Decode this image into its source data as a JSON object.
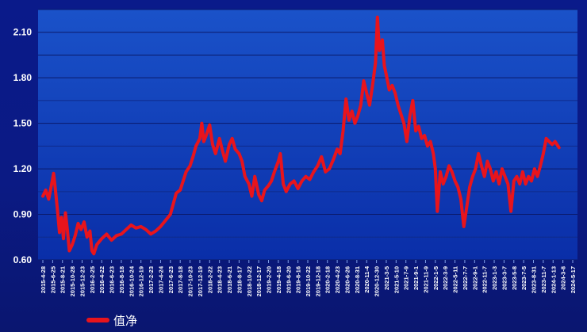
{
  "chart_data": {
    "type": "line",
    "title": "",
    "xlabel": "",
    "ylabel": "",
    "ylim": [
      0.6,
      2.25
    ],
    "y_ticks": [
      "0.60",
      "0.90",
      "1.20",
      "1.50",
      "1.80",
      "2.10"
    ],
    "x_tick_labels": [
      "2015-4-28",
      "2015-6-25",
      "2015-8-21",
      "2015-10-28",
      "2015-12-23",
      "2016-2-25",
      "2016-4-22",
      "2016-6-23",
      "2016-8-18",
      "2016-10-24",
      "2016-12-19",
      "2017-2-23",
      "2017-4-24",
      "2017-6-23",
      "2017-8-18",
      "2017-10-23",
      "2017-12-19",
      "2018-2-22",
      "2018-4-23",
      "2018-6-21",
      "2018-8-17",
      "2018-10-22",
      "2018-12-17",
      "2019-2-20",
      "2019-4-18",
      "2019-6-20",
      "2019-8-16",
      "2019-10-22",
      "2019-12-18",
      "2020-2-18",
      "2020-4-23",
      "2020-6-26",
      "2020-8-31",
      "2020-11-4",
      "2020-12-30",
      "2021-3-5",
      "2021-5-10",
      "2021-7-9",
      "2021-9-1",
      "2021-11-9",
      "2022-1-5",
      "2022-3-9",
      "2022-5-11",
      "2022-7-7",
      "2022-9-1",
      "2022-11-7",
      "2023-1-3",
      "2023-3-7",
      "2023-5-8",
      "2023-7-5",
      "2023-8-31",
      "2023-11-7",
      "2024-1-13",
      "2024-3-8",
      "2024-5-17"
    ],
    "grid": true,
    "legend_position": "bottom-left",
    "series": [
      {
        "name": "值净",
        "color": "#e8141c",
        "values": [
          [
            0,
            1.02
          ],
          [
            0.3,
            1.06
          ],
          [
            0.6,
            1.0
          ],
          [
            0.9,
            1.1
          ],
          [
            1.1,
            1.17
          ],
          [
            1.3,
            1.05
          ],
          [
            1.5,
            0.92
          ],
          [
            1.7,
            0.78
          ],
          [
            1.9,
            0.88
          ],
          [
            2.1,
            0.74
          ],
          [
            2.3,
            0.91
          ],
          [
            2.5,
            0.8
          ],
          [
            2.7,
            0.66
          ],
          [
            3.0,
            0.7
          ],
          [
            3.3,
            0.76
          ],
          [
            3.6,
            0.84
          ],
          [
            3.9,
            0.8
          ],
          [
            4.2,
            0.85
          ],
          [
            4.5,
            0.75
          ],
          [
            4.8,
            0.79
          ],
          [
            5.0,
            0.66
          ],
          [
            5.2,
            0.64
          ],
          [
            5.5,
            0.7
          ],
          [
            6.0,
            0.74
          ],
          [
            6.5,
            0.77
          ],
          [
            7.0,
            0.73
          ],
          [
            7.5,
            0.76
          ],
          [
            8.0,
            0.77
          ],
          [
            8.5,
            0.8
          ],
          [
            9.0,
            0.83
          ],
          [
            9.5,
            0.81
          ],
          [
            10.0,
            0.82
          ],
          [
            10.5,
            0.8
          ],
          [
            11.0,
            0.77
          ],
          [
            11.5,
            0.79
          ],
          [
            12.0,
            0.82
          ],
          [
            12.5,
            0.86
          ],
          [
            13.0,
            0.9
          ],
          [
            13.3,
            0.97
          ],
          [
            13.6,
            1.04
          ],
          [
            14.0,
            1.06
          ],
          [
            14.3,
            1.12
          ],
          [
            14.6,
            1.18
          ],
          [
            15.0,
            1.22
          ],
          [
            15.3,
            1.28
          ],
          [
            15.6,
            1.35
          ],
          [
            16.0,
            1.4
          ],
          [
            16.2,
            1.5
          ],
          [
            16.4,
            1.38
          ],
          [
            16.7,
            1.43
          ],
          [
            17.0,
            1.49
          ],
          [
            17.3,
            1.36
          ],
          [
            17.6,
            1.3
          ],
          [
            18.0,
            1.4
          ],
          [
            18.3,
            1.32
          ],
          [
            18.6,
            1.25
          ],
          [
            19.0,
            1.36
          ],
          [
            19.3,
            1.4
          ],
          [
            19.6,
            1.33
          ],
          [
            20.0,
            1.3
          ],
          [
            20.3,
            1.25
          ],
          [
            20.6,
            1.15
          ],
          [
            21.0,
            1.1
          ],
          [
            21.3,
            1.02
          ],
          [
            21.6,
            1.15
          ],
          [
            22.0,
            1.03
          ],
          [
            22.3,
            0.99
          ],
          [
            22.6,
            1.06
          ],
          [
            23.0,
            1.09
          ],
          [
            23.3,
            1.12
          ],
          [
            23.6,
            1.18
          ],
          [
            24.0,
            1.25
          ],
          [
            24.2,
            1.3
          ],
          [
            24.5,
            1.1
          ],
          [
            24.8,
            1.05
          ],
          [
            25.2,
            1.1
          ],
          [
            25.6,
            1.12
          ],
          [
            26.0,
            1.07
          ],
          [
            26.4,
            1.12
          ],
          [
            26.8,
            1.15
          ],
          [
            27.2,
            1.13
          ],
          [
            27.6,
            1.18
          ],
          [
            28.0,
            1.22
          ],
          [
            28.4,
            1.28
          ],
          [
            28.8,
            1.18
          ],
          [
            29.2,
            1.2
          ],
          [
            29.6,
            1.26
          ],
          [
            30.0,
            1.33
          ],
          [
            30.3,
            1.3
          ],
          [
            30.6,
            1.45
          ],
          [
            30.9,
            1.66
          ],
          [
            31.2,
            1.52
          ],
          [
            31.5,
            1.58
          ],
          [
            31.8,
            1.5
          ],
          [
            32.1,
            1.55
          ],
          [
            32.4,
            1.62
          ],
          [
            32.7,
            1.78
          ],
          [
            33.0,
            1.7
          ],
          [
            33.3,
            1.62
          ],
          [
            33.6,
            1.75
          ],
          [
            33.9,
            1.9
          ],
          [
            34.1,
            2.2
          ],
          [
            34.3,
            1.98
          ],
          [
            34.6,
            2.05
          ],
          [
            34.8,
            1.88
          ],
          [
            35.0,
            1.82
          ],
          [
            35.3,
            1.72
          ],
          [
            35.6,
            1.75
          ],
          [
            35.9,
            1.7
          ],
          [
            36.2,
            1.62
          ],
          [
            36.5,
            1.56
          ],
          [
            36.8,
            1.5
          ],
          [
            37.1,
            1.38
          ],
          [
            37.4,
            1.55
          ],
          [
            37.7,
            1.65
          ],
          [
            38.0,
            1.45
          ],
          [
            38.3,
            1.48
          ],
          [
            38.6,
            1.4
          ],
          [
            38.9,
            1.42
          ],
          [
            39.2,
            1.35
          ],
          [
            39.5,
            1.38
          ],
          [
            39.8,
            1.3
          ],
          [
            40.0,
            1.2
          ],
          [
            40.2,
            0.92
          ],
          [
            40.5,
            1.18
          ],
          [
            40.8,
            1.1
          ],
          [
            41.1,
            1.15
          ],
          [
            41.4,
            1.22
          ],
          [
            41.7,
            1.18
          ],
          [
            42.0,
            1.12
          ],
          [
            42.3,
            1.08
          ],
          [
            42.6,
            1.0
          ],
          [
            42.9,
            0.82
          ],
          [
            43.2,
            0.95
          ],
          [
            43.5,
            1.08
          ],
          [
            43.8,
            1.15
          ],
          [
            44.1,
            1.2
          ],
          [
            44.4,
            1.3
          ],
          [
            44.7,
            1.22
          ],
          [
            45.0,
            1.15
          ],
          [
            45.3,
            1.25
          ],
          [
            45.6,
            1.2
          ],
          [
            45.9,
            1.12
          ],
          [
            46.2,
            1.18
          ],
          [
            46.5,
            1.1
          ],
          [
            46.8,
            1.2
          ],
          [
            47.1,
            1.15
          ],
          [
            47.4,
            1.1
          ],
          [
            47.7,
            0.92
          ],
          [
            48.0,
            1.12
          ],
          [
            48.3,
            1.15
          ],
          [
            48.6,
            1.1
          ],
          [
            48.9,
            1.18
          ],
          [
            49.2,
            1.1
          ],
          [
            49.5,
            1.15
          ],
          [
            49.8,
            1.12
          ],
          [
            50.1,
            1.2
          ],
          [
            50.4,
            1.15
          ],
          [
            50.7,
            1.22
          ],
          [
            51.0,
            1.3
          ],
          [
            51.3,
            1.4
          ],
          [
            51.6,
            1.38
          ],
          [
            51.9,
            1.36
          ],
          [
            52.2,
            1.38
          ],
          [
            52.6,
            1.34
          ]
        ]
      }
    ]
  },
  "legend": {
    "label": "值净",
    "color": "#e8141c"
  }
}
